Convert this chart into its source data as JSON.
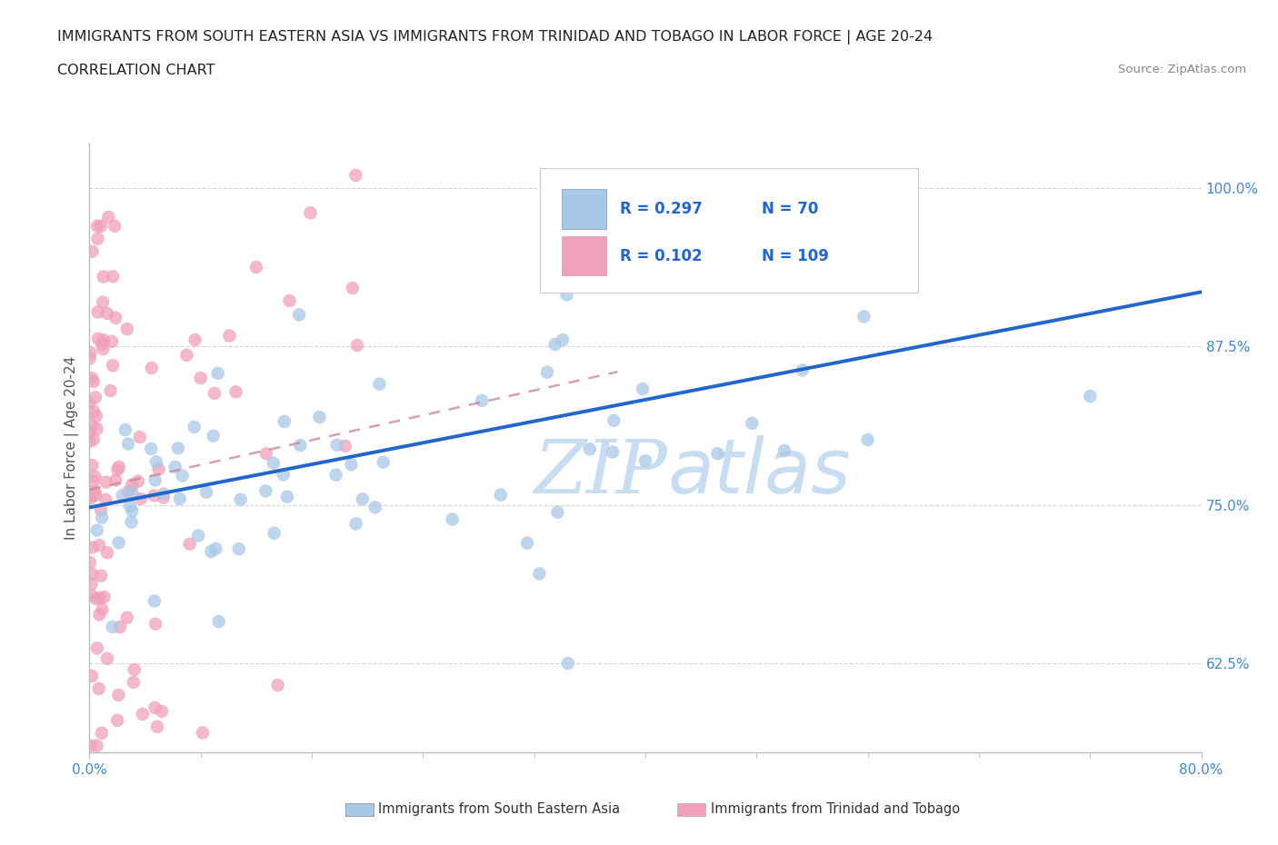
{
  "title_line1": "IMMIGRANTS FROM SOUTH EASTERN ASIA VS IMMIGRANTS FROM TRINIDAD AND TOBAGO IN LABOR FORCE | AGE 20-24",
  "title_line2": "CORRELATION CHART",
  "source_text": "Source: ZipAtlas.com",
  "ylabel": "In Labor Force | Age 20-24",
  "xlim": [
    0.0,
    0.8
  ],
  "ylim": [
    0.555,
    1.035
  ],
  "ytick_labels": [
    "62.5%",
    "75.0%",
    "87.5%",
    "100.0%"
  ],
  "ytick_positions": [
    0.625,
    0.75,
    0.875,
    1.0
  ],
  "blue_R": 0.297,
  "blue_N": 70,
  "pink_R": 0.102,
  "pink_N": 109,
  "blue_dot_color": "#a8c8e8",
  "pink_dot_color": "#f0a0b8",
  "blue_line_color": "#2266cc",
  "pink_line_color": "#cc8899",
  "tick_color": "#4488cc",
  "axis_color": "#bbbbbb",
  "watermark_color": "#c0d8f0",
  "legend_label_blue": "Immigrants from South Eastern Asia",
  "legend_label_pink": "Immigrants from Trinidad and Tobago",
  "blue_trend_x0": 0.0,
  "blue_trend_y0": 0.748,
  "blue_trend_x1": 0.8,
  "blue_trend_y1": 0.918,
  "pink_trend_x0": 0.0,
  "pink_trend_y0": 0.762,
  "pink_trend_x1": 0.38,
  "pink_trend_y1": 0.855
}
